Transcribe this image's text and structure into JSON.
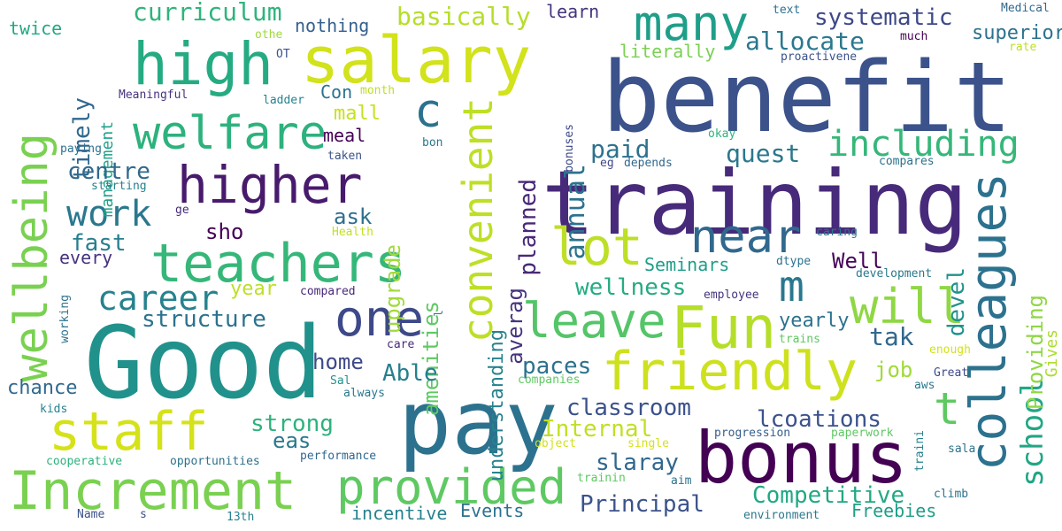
{
  "words": [
    {
      "text": "benefit",
      "color": "#3b528b"
    },
    {
      "text": "training",
      "color": "#472a7a"
    },
    {
      "text": "Good",
      "color": "#21918c"
    },
    {
      "text": "pay",
      "color": "#2c728e"
    },
    {
      "text": "salary",
      "color": "#d2e21b"
    },
    {
      "text": "bonus",
      "color": "#440154"
    },
    {
      "text": "colleagues",
      "color": "#2c728e"
    },
    {
      "text": "Increment",
      "color": "#7ad151"
    },
    {
      "text": "provided",
      "color": "#5ec962"
    },
    {
      "text": "teachers",
      "color": "#35b779"
    },
    {
      "text": "staff",
      "color": "#d5e21a"
    },
    {
      "text": "high",
      "color": "#25ab82"
    },
    {
      "text": "higher",
      "color": "#481a6c"
    },
    {
      "text": "Fun",
      "color": "#b5de2b"
    },
    {
      "text": "friendly",
      "color": "#cde11d"
    },
    {
      "text": "welfare",
      "color": "#2db27d"
    },
    {
      "text": "many",
      "color": "#1f9e89"
    },
    {
      "text": "lot",
      "color": "#bddf26"
    },
    {
      "text": "one",
      "color": "#3e4989"
    },
    {
      "text": "leave",
      "color": "#54c568"
    },
    {
      "text": "near",
      "color": "#31688e"
    },
    {
      "text": "will",
      "color": "#8fd744"
    },
    {
      "text": "wellbeing",
      "color": "#7ad151"
    },
    {
      "text": "convenient",
      "color": "#bddf26"
    },
    {
      "text": "c",
      "color": "#2c728e"
    },
    {
      "text": "m",
      "color": "#2a788e"
    },
    {
      "text": "t",
      "color": "#5ec962"
    },
    {
      "text": "including",
      "color": "#35b779"
    },
    {
      "text": "career",
      "color": "#26828e"
    },
    {
      "text": "work",
      "color": "#2a788e"
    },
    {
      "text": "school",
      "color": "#21a685"
    },
    {
      "text": "curriculum",
      "color": "#2fb47c"
    },
    {
      "text": "basically",
      "color": "#b5de2b"
    },
    {
      "text": "systematic",
      "color": "#3e4989"
    },
    {
      "text": "allocate",
      "color": "#2a788e"
    },
    {
      "text": "superiors",
      "color": "#2c728e"
    },
    {
      "text": "nothing",
      "color": "#355f8d"
    },
    {
      "text": "learn",
      "color": "#46337e"
    },
    {
      "text": "twice",
      "color": "#22a884"
    },
    {
      "text": "timely",
      "color": "#31688e"
    },
    {
      "text": "management",
      "color": "#1fa187"
    },
    {
      "text": "annual",
      "color": "#2c728e"
    },
    {
      "text": "planned",
      "color": "#482878"
    },
    {
      "text": "upgrade",
      "color": "#a0da39"
    },
    {
      "text": "amenities",
      "color": "#5ec962"
    },
    {
      "text": "understanding",
      "color": "#26828e"
    },
    {
      "text": "averag",
      "color": "#46337e"
    },
    {
      "text": "paid",
      "color": "#2c728e"
    },
    {
      "text": "quest",
      "color": "#2a788e"
    },
    {
      "text": "centre",
      "color": "#31688e"
    },
    {
      "text": "fast",
      "color": "#277f8e"
    },
    {
      "text": "ask",
      "color": "#2e6e8e"
    },
    {
      "text": "sho",
      "color": "#440154"
    },
    {
      "text": "Well",
      "color": "#450559"
    },
    {
      "text": "devel",
      "color": "#20928c"
    },
    {
      "text": "Providing",
      "color": "#8fd744"
    },
    {
      "text": "Gives",
      "color": "#addc30"
    },
    {
      "text": "every",
      "color": "#46337e"
    },
    {
      "text": "Seminars",
      "color": "#1f9e89"
    },
    {
      "text": "wellness",
      "color": "#25ab82"
    },
    {
      "text": "structure",
      "color": "#2c728e"
    },
    {
      "text": "year",
      "color": "#bddf26"
    },
    {
      "text": "home",
      "color": "#3e4989"
    },
    {
      "text": "Able",
      "color": "#277f8e"
    },
    {
      "text": "paces",
      "color": "#2c728e"
    },
    {
      "text": "tak",
      "color": "#31688e"
    },
    {
      "text": "yearly",
      "color": "#2c728e"
    },
    {
      "text": "job",
      "color": "#a0da39"
    },
    {
      "text": "chance",
      "color": "#31688e"
    },
    {
      "text": "classroom",
      "color": "#3b528b"
    },
    {
      "text": "lcoations",
      "color": "#3b528b"
    },
    {
      "text": "strong",
      "color": "#2db27d"
    },
    {
      "text": "eas",
      "color": "#2a788e"
    },
    {
      "text": "Internal",
      "color": "#c2df23"
    },
    {
      "text": "slaray",
      "color": "#31688e"
    },
    {
      "text": "Competitive",
      "color": "#22a884"
    },
    {
      "text": "Principal",
      "color": "#3b528b"
    },
    {
      "text": "Events",
      "color": "#2c728e"
    },
    {
      "text": "Freebies",
      "color": "#1f9e89"
    },
    {
      "text": "incentive",
      "color": "#26828e"
    },
    {
      "text": "mall",
      "color": "#c8e020"
    },
    {
      "text": "meal",
      "color": "#440154"
    },
    {
      "text": "Con",
      "color": "#2c728e"
    },
    {
      "text": "Meaningful",
      "color": "#46337e"
    },
    {
      "text": "ladder",
      "color": "#26828e"
    },
    {
      "text": "OT",
      "color": "#3b528b"
    },
    {
      "text": "othe",
      "color": "#9fda3a"
    },
    {
      "text": "month",
      "color": "#bddf26"
    },
    {
      "text": "paying",
      "color": "#2c728e"
    },
    {
      "text": "starting",
      "color": "#26828e"
    },
    {
      "text": "bon",
      "color": "#2a788e"
    },
    {
      "text": "taken",
      "color": "#3b528b"
    },
    {
      "text": "eg",
      "color": "#3e4989"
    },
    {
      "text": "depends",
      "color": "#31688e"
    },
    {
      "text": "okay",
      "color": "#2db27d"
    },
    {
      "text": "bonuses",
      "color": "#3e4989"
    },
    {
      "text": "proactivene",
      "color": "#3b528b"
    },
    {
      "text": "much",
      "color": "#440154"
    },
    {
      "text": "text",
      "color": "#2c728e"
    },
    {
      "text": "Medical",
      "color": "#31688e"
    },
    {
      "text": "rate",
      "color": "#bddf26"
    },
    {
      "text": "literally",
      "color": "#7ad151"
    },
    {
      "text": "ge",
      "color": "#472a7a"
    },
    {
      "text": "Health",
      "color": "#c2df23"
    },
    {
      "text": "caring",
      "color": "#2c728e"
    },
    {
      "text": "compares",
      "color": "#2c728e"
    },
    {
      "text": "dtype",
      "color": "#2c728e"
    },
    {
      "text": "development",
      "color": "#2a788e"
    },
    {
      "text": "employee",
      "color": "#46337e"
    },
    {
      "text": "compared",
      "color": "#482878"
    },
    {
      "text": "working",
      "color": "#2c728e"
    },
    {
      "text": "l",
      "color": "#2a788e"
    },
    {
      "text": "care",
      "color": "#472a7a"
    },
    {
      "text": "always",
      "color": "#2a788e"
    },
    {
      "text": "Sal",
      "color": "#21918c"
    },
    {
      "text": "companies",
      "color": "#5ec962"
    },
    {
      "text": "trains",
      "color": "#5ec962"
    },
    {
      "text": "enough",
      "color": "#d2e21b"
    },
    {
      "text": "aws",
      "color": "#2a788e"
    },
    {
      "text": "Great",
      "color": "#3e4989"
    },
    {
      "text": "kids",
      "color": "#26828e"
    },
    {
      "text": "cooperative",
      "color": "#2db27d"
    },
    {
      "text": "opportunities",
      "color": "#2c728e"
    },
    {
      "text": "performance",
      "color": "#31688e"
    },
    {
      "text": "object",
      "color": "#d2e21b"
    },
    {
      "text": "single",
      "color": "#d5e21a"
    },
    {
      "text": "progression",
      "color": "#355f8d"
    },
    {
      "text": "paperwork",
      "color": "#5ec962"
    },
    {
      "text": "traini",
      "color": "#26828e"
    },
    {
      "text": "sala",
      "color": "#2c728e"
    },
    {
      "text": "trainin",
      "color": "#5ec962"
    },
    {
      "text": "aim",
      "color": "#2c728e"
    },
    {
      "text": "climb",
      "color": "#2c728e"
    },
    {
      "text": "Name",
      "color": "#3b528b"
    },
    {
      "text": "s",
      "color": "#3b528b"
    },
    {
      "text": "13th",
      "color": "#26828e"
    },
    {
      "text": "environment",
      "color": "#2a788e"
    }
  ]
}
